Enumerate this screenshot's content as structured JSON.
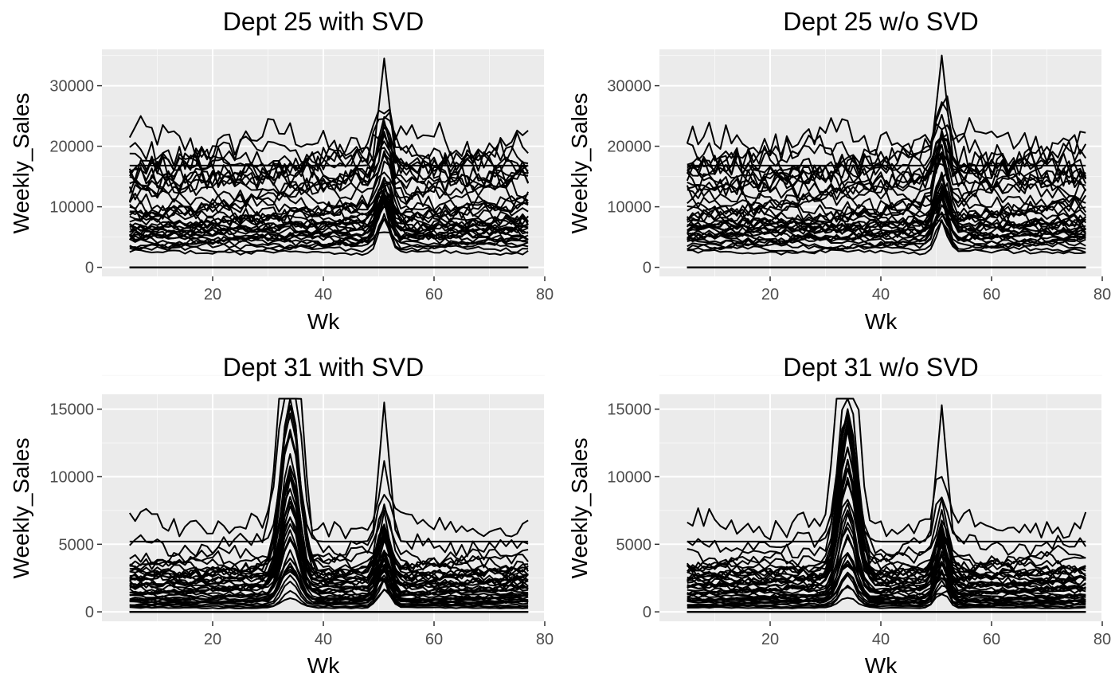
{
  "colors": {
    "panel_background": "#ebebeb",
    "grid_major": "#ffffff",
    "grid_minor": "#f7f7f7",
    "series_line": "#000000",
    "tick_text": "#4d4d4d"
  },
  "chart_data": [
    {
      "type": "line",
      "title": "Dept 25 with SVD",
      "xlabel": "Wk",
      "ylabel": "Weekly_Sales",
      "xlim": [
        0,
        80
      ],
      "ylim": [
        -1500,
        36000
      ],
      "xticks": [
        20,
        40,
        60,
        80
      ],
      "xtick_labels": [
        "20",
        "40",
        "60",
        "80"
      ],
      "yticks": [
        0,
        10000,
        20000,
        30000
      ],
      "ytick_labels": [
        "0",
        "10000",
        "20000",
        "30000"
      ],
      "x_range": [
        5,
        77
      ],
      "series_count": 45,
      "series_levels": [
        21000,
        19000,
        18000,
        17000,
        16500,
        16000,
        15500,
        15000,
        14500,
        14000,
        13500,
        12500,
        11500,
        10500,
        10000,
        9500,
        9000,
        8500,
        8000,
        7800,
        7500,
        7200,
        7000,
        6800,
        6500,
        6200,
        6000,
        5800,
        5500,
        5200,
        5000,
        4800,
        4500,
        4200,
        3800,
        3500,
        3000,
        2500,
        0,
        0,
        0,
        0,
        0,
        0,
        0
      ],
      "holiday_peak": {
        "week": 51,
        "max_value": 34500
      },
      "grid": true
    },
    {
      "type": "line",
      "title": "Dept 25 w/o SVD",
      "xlabel": "Wk",
      "ylabel": "Weekly_Sales",
      "xlim": [
        0,
        80
      ],
      "ylim": [
        -1500,
        36000
      ],
      "xticks": [
        20,
        40,
        60,
        80
      ],
      "xtick_labels": [
        "20",
        "40",
        "60",
        "80"
      ],
      "yticks": [
        0,
        10000,
        20000,
        30000
      ],
      "ytick_labels": [
        "0",
        "10000",
        "20000",
        "30000"
      ],
      "x_range": [
        5,
        77
      ],
      "series_count": 45,
      "series_levels": [
        21000,
        19000,
        18000,
        17000,
        16500,
        16000,
        15500,
        15000,
        14500,
        14000,
        13500,
        12500,
        11500,
        10500,
        10000,
        9500,
        9000,
        8500,
        8000,
        7800,
        7500,
        7200,
        7000,
        6800,
        6500,
        6200,
        6000,
        5800,
        5500,
        5200,
        5000,
        4800,
        4500,
        4200,
        3800,
        3500,
        3000,
        2500,
        0,
        0,
        0,
        0,
        0,
        0,
        0
      ],
      "holiday_peak": {
        "week": 51,
        "max_value": 35000
      },
      "grid": true
    },
    {
      "type": "line",
      "title": "Dept 31 with SVD",
      "xlabel": "Wk",
      "ylabel": "Weekly_Sales",
      "xlim": [
        0,
        80
      ],
      "ylim": [
        -700,
        16100
      ],
      "xticks": [
        20,
        40,
        60,
        80
      ],
      "xtick_labels": [
        "20",
        "40",
        "60",
        "80"
      ],
      "yticks": [
        0,
        5000,
        10000,
        15000
      ],
      "ytick_labels": [
        "0",
        "5000",
        "10000",
        "15000"
      ],
      "x_range": [
        5,
        77
      ],
      "series_count": 45,
      "series_levels": [
        6500,
        5000,
        4200,
        3800,
        3500,
        3300,
        3100,
        3000,
        2900,
        2800,
        2700,
        2600,
        2500,
        2400,
        2300,
        2200,
        2100,
        2000,
        1900,
        1800,
        1700,
        1600,
        1500,
        1400,
        1300,
        1200,
        1100,
        1000,
        950,
        900,
        850,
        800,
        750,
        700,
        600,
        500,
        400,
        300,
        0,
        0,
        0,
        0,
        0,
        0,
        0
      ],
      "mid_peak": {
        "week": 34,
        "max_value": 14700
      },
      "holiday_peak": {
        "week": 51,
        "max_value": 15500
      },
      "grid": true
    },
    {
      "type": "line",
      "title": "Dept 31 w/o SVD",
      "xlabel": "Wk",
      "ylabel": "Weekly_Sales",
      "xlim": [
        0,
        80
      ],
      "ylim": [
        -700,
        16100
      ],
      "xticks": [
        20,
        40,
        60,
        80
      ],
      "xtick_labels": [
        "20",
        "40",
        "60",
        "80"
      ],
      "yticks": [
        0,
        5000,
        10000,
        15000
      ],
      "ytick_labels": [
        "0",
        "5000",
        "10000",
        "15000"
      ],
      "x_range": [
        5,
        77
      ],
      "series_count": 45,
      "series_levels": [
        6500,
        5000,
        4200,
        3800,
        3500,
        3300,
        3100,
        3000,
        2900,
        2800,
        2700,
        2600,
        2500,
        2400,
        2300,
        2200,
        2100,
        2000,
        1900,
        1800,
        1700,
        1600,
        1500,
        1400,
        1300,
        1200,
        1100,
        1000,
        950,
        900,
        850,
        800,
        750,
        700,
        600,
        500,
        400,
        300,
        0,
        0,
        0,
        0,
        0,
        0,
        0
      ],
      "mid_peak": {
        "week": 34,
        "max_value": 14700
      },
      "holiday_peak": {
        "week": 51,
        "max_value": 15300
      },
      "grid": true
    }
  ]
}
